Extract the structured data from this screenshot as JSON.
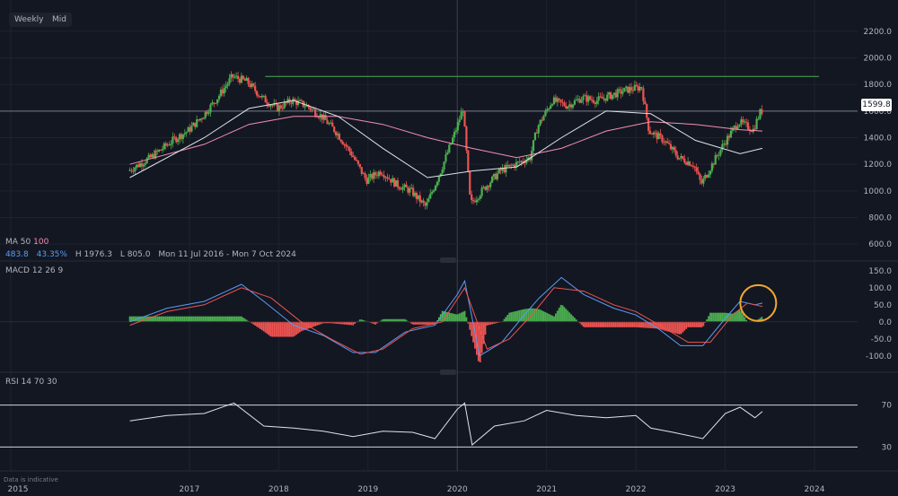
{
  "toolbar": {
    "interval": "Weekly",
    "price_type": "Mid"
  },
  "ma_legend": {
    "name": "MA",
    "p1": "50",
    "p2": "100",
    "v1": "483.8",
    "v2": "43.35%",
    "high": "H 1976.3",
    "low": "L 805.0",
    "range": "Mon 11 Jul 2016 - Mon 7 Oct 2024"
  },
  "macd_legend": {
    "name": "MACD",
    "p1": "12",
    "p2": "26",
    "p3": "9"
  },
  "rsi_legend": {
    "name": "RSI",
    "p1": "14",
    "p2": "70",
    "p3": "30"
  },
  "last_price_label": "1599.8",
  "footer_note": "Data is indicative",
  "colors": {
    "up": "#26a69a",
    "up_candle": "#4caf50",
    "down": "#ef5350",
    "ma50": "#e0e3eb",
    "ma100": "#f48fb1",
    "macd": "#5b9cf6",
    "signal": "#ef5350",
    "resistance": "#4caf50",
    "highlight": "#f0a830"
  },
  "chart_data": [
    {
      "type": "candlestick",
      "title": "",
      "x_ticks": [
        "2015",
        "2017",
        "2018",
        "2019",
        "2020",
        "2021",
        "2022",
        "2023",
        "2024"
      ],
      "y_ticks": [
        600,
        800,
        1000,
        1200,
        1400,
        1600,
        1800,
        2000,
        2200
      ],
      "ylim": [
        500,
        2300
      ],
      "resistance_level": 1860,
      "current_price": 1599.8,
      "price_path": [
        [
          "2016-05",
          1150
        ],
        [
          "2016-08",
          1250
        ],
        [
          "2016-11",
          1380
        ],
        [
          "2017-01",
          1450
        ],
        [
          "2017-03",
          1560
        ],
        [
          "2017-05",
          1700
        ],
        [
          "2017-07",
          1860
        ],
        [
          "2017-09",
          1820
        ],
        [
          "2017-11",
          1700
        ],
        [
          "2018-01",
          1620
        ],
        [
          "2018-03",
          1680
        ],
        [
          "2018-05",
          1640
        ],
        [
          "2018-07",
          1560
        ],
        [
          "2018-09",
          1440
        ],
        [
          "2018-11",
          1280
        ],
        [
          "2019-01",
          1080
        ],
        [
          "2019-03",
          1150
        ],
        [
          "2019-05",
          1050
        ],
        [
          "2019-07",
          1000
        ],
        [
          "2019-09",
          880
        ],
        [
          "2019-11",
          1150
        ],
        [
          "2020-01",
          1450
        ],
        [
          "2020-02",
          1620
        ],
        [
          "2020-03",
          900
        ],
        [
          "2020-05",
          1030
        ],
        [
          "2020-07",
          1150
        ],
        [
          "2020-09",
          1200
        ],
        [
          "2020-11",
          1250
        ],
        [
          "2020-12",
          1480
        ],
        [
          "2021-02",
          1680
        ],
        [
          "2021-04",
          1640
        ],
        [
          "2021-06",
          1700
        ],
        [
          "2021-08",
          1680
        ],
        [
          "2021-10",
          1720
        ],
        [
          "2021-12",
          1760
        ],
        [
          "2022-02",
          1780
        ],
        [
          "2022-03",
          1450
        ],
        [
          "2022-05",
          1380
        ],
        [
          "2022-07",
          1250
        ],
        [
          "2022-09",
          1200
        ],
        [
          "2022-10",
          1050
        ],
        [
          "2022-12",
          1250
        ],
        [
          "2023-01",
          1350
        ],
        [
          "2023-03",
          1520
        ],
        [
          "2023-05",
          1460
        ],
        [
          "2023-06",
          1600
        ]
      ],
      "ma50_path": [
        [
          "2016-05",
          1100
        ],
        [
          "2017-03",
          1400
        ],
        [
          "2017-09",
          1620
        ],
        [
          "2018-03",
          1680
        ],
        [
          "2018-09",
          1560
        ],
        [
          "2019-03",
          1320
        ],
        [
          "2019-09",
          1100
        ],
        [
          "2020-03",
          1150
        ],
        [
          "2020-09",
          1180
        ],
        [
          "2021-03",
          1400
        ],
        [
          "2021-09",
          1600
        ],
        [
          "2022-03",
          1580
        ],
        [
          "2022-09",
          1380
        ],
        [
          "2023-03",
          1280
        ],
        [
          "2023-06",
          1320
        ]
      ],
      "ma100_path": [
        [
          "2016-05",
          1200
        ],
        [
          "2017-03",
          1350
        ],
        [
          "2017-09",
          1500
        ],
        [
          "2018-03",
          1560
        ],
        [
          "2018-09",
          1560
        ],
        [
          "2019-03",
          1500
        ],
        [
          "2019-09",
          1400
        ],
        [
          "2020-03",
          1320
        ],
        [
          "2020-09",
          1250
        ],
        [
          "2021-03",
          1320
        ],
        [
          "2021-09",
          1450
        ],
        [
          "2022-03",
          1520
        ],
        [
          "2022-09",
          1500
        ],
        [
          "2023-03",
          1460
        ],
        [
          "2023-06",
          1450
        ]
      ]
    },
    {
      "type": "line",
      "title": "",
      "y_ticks": [
        -100,
        -50,
        0,
        50,
        100,
        150
      ],
      "ylim": [
        -140,
        160
      ],
      "macd_path": [
        [
          "2016-05",
          0
        ],
        [
          "2016-10",
          40
        ],
        [
          "2017-03",
          60
        ],
        [
          "2017-08",
          110
        ],
        [
          "2017-11",
          60
        ],
        [
          "2018-03",
          -10
        ],
        [
          "2018-07",
          -40
        ],
        [
          "2018-11",
          -90
        ],
        [
          "2019-02",
          -90
        ],
        [
          "2019-06",
          -30
        ],
        [
          "2019-10",
          -10
        ],
        [
          "2020-01",
          80
        ],
        [
          "2020-02",
          120
        ],
        [
          "2020-04",
          -100
        ],
        [
          "2020-07",
          -60
        ],
        [
          "2020-10",
          20
        ],
        [
          "2020-12",
          70
        ],
        [
          "2021-03",
          130
        ],
        [
          "2021-06",
          80
        ],
        [
          "2021-10",
          40
        ],
        [
          "2022-01",
          20
        ],
        [
          "2022-04",
          -20
        ],
        [
          "2022-07",
          -70
        ],
        [
          "2022-10",
          -70
        ],
        [
          "2023-01",
          10
        ],
        [
          "2023-03",
          60
        ],
        [
          "2023-05",
          50
        ],
        [
          "2023-06",
          55
        ]
      ],
      "signal_path": [
        [
          "2016-05",
          -10
        ],
        [
          "2016-10",
          30
        ],
        [
          "2017-03",
          50
        ],
        [
          "2017-08",
          100
        ],
        [
          "2017-12",
          70
        ],
        [
          "2018-04",
          0
        ],
        [
          "2018-08",
          -50
        ],
        [
          "2018-12",
          -95
        ],
        [
          "2019-03",
          -80
        ],
        [
          "2019-07",
          -20
        ],
        [
          "2019-11",
          0
        ],
        [
          "2020-02",
          100
        ],
        [
          "2020-05",
          -80
        ],
        [
          "2020-08",
          -50
        ],
        [
          "2020-11",
          20
        ],
        [
          "2021-02",
          100
        ],
        [
          "2021-06",
          90
        ],
        [
          "2021-10",
          50
        ],
        [
          "2022-01",
          30
        ],
        [
          "2022-05",
          -20
        ],
        [
          "2022-08",
          -60
        ],
        [
          "2022-11",
          -60
        ],
        [
          "2023-02",
          20
        ],
        [
          "2023-04",
          55
        ],
        [
          "2023-06",
          45
        ]
      ]
    },
    {
      "type": "line",
      "title": "",
      "y_ticks": [
        30,
        70
      ],
      "ylim": [
        20,
        80
      ],
      "rsi_path": [
        [
          "2016-05",
          55
        ],
        [
          "2016-10",
          60
        ],
        [
          "2017-03",
          62
        ],
        [
          "2017-07",
          72
        ],
        [
          "2017-11",
          50
        ],
        [
          "2018-03",
          48
        ],
        [
          "2018-07",
          45
        ],
        [
          "2018-11",
          40
        ],
        [
          "2019-03",
          45
        ],
        [
          "2019-07",
          44
        ],
        [
          "2019-10",
          38
        ],
        [
          "2020-01",
          66
        ],
        [
          "2020-02",
          72
        ],
        [
          "2020-03",
          32
        ],
        [
          "2020-06",
          50
        ],
        [
          "2020-10",
          55
        ],
        [
          "2021-01",
          65
        ],
        [
          "2021-05",
          60
        ],
        [
          "2021-09",
          58
        ],
        [
          "2022-01",
          60
        ],
        [
          "2022-03",
          48
        ],
        [
          "2022-06",
          44
        ],
        [
          "2022-10",
          38
        ],
        [
          "2023-01",
          62
        ],
        [
          "2023-03",
          68
        ],
        [
          "2023-05",
          58
        ],
        [
          "2023-06",
          64
        ]
      ]
    }
  ]
}
